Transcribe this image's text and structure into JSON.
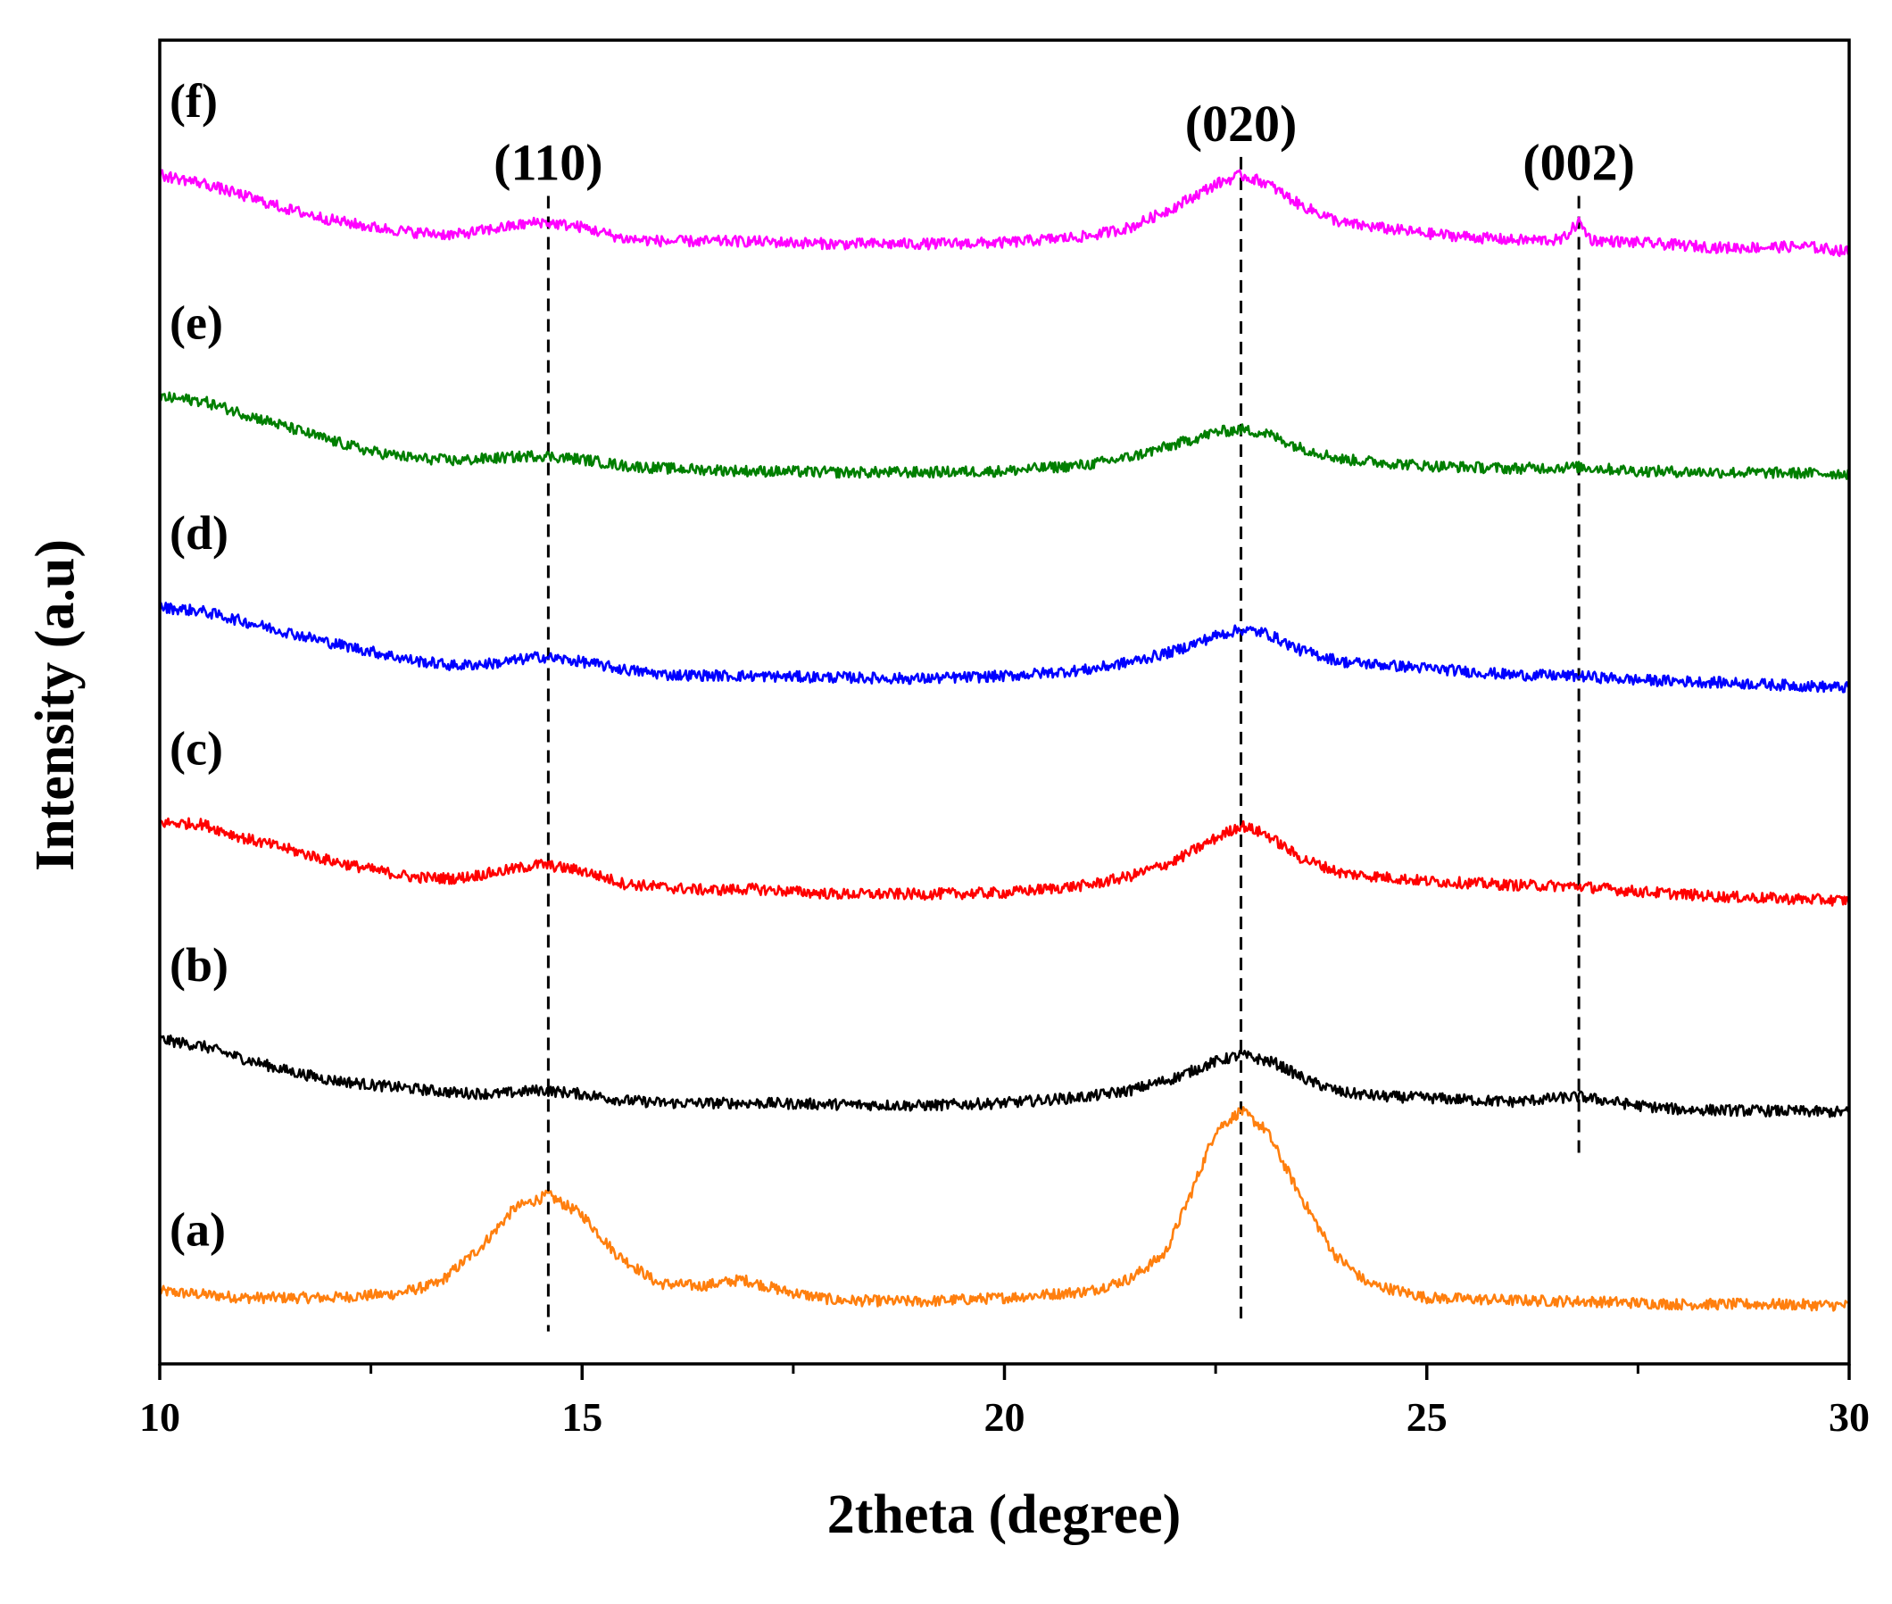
{
  "chart_data": {
    "type": "line",
    "title": "",
    "xlabel": "2theta (degree)",
    "ylabel": "Intensity (a.u)",
    "xlim": [
      10,
      30
    ],
    "ylim": [
      0,
      10.2
    ],
    "x_ticks": [
      10,
      15,
      20,
      25,
      30
    ],
    "x_tick_labels": [
      "10",
      "15",
      "20",
      "25",
      "30"
    ],
    "x_minor_ticks": [
      12.5,
      17.5,
      22.5,
      27.5
    ],
    "grid": false,
    "legend": "none",
    "annotations": [
      {
        "label": "(110)",
        "x": 14.6,
        "y_top": 9.0,
        "y_bottom": 0.25
      },
      {
        "label": "(020)",
        "x": 22.8,
        "y_top": 9.3,
        "y_bottom": 0.35
      },
      {
        "label": "(002)",
        "x": 26.8,
        "y_top": 9.0,
        "y_bottom": 1.6
      }
    ],
    "series": [
      {
        "name": "(a)",
        "color": "#ff7f0e",
        "points": [
          [
            10,
            0.56
          ],
          [
            11,
            0.51
          ],
          [
            12,
            0.51
          ],
          [
            12.8,
            0.54
          ],
          [
            13.3,
            0.62
          ],
          [
            13.8,
            0.9
          ],
          [
            14.2,
            1.2
          ],
          [
            14.6,
            1.3
          ],
          [
            15.0,
            1.15
          ],
          [
            15.4,
            0.85
          ],
          [
            15.9,
            0.62
          ],
          [
            16.4,
            0.6
          ],
          [
            16.9,
            0.65
          ],
          [
            17.4,
            0.56
          ],
          [
            18,
            0.49
          ],
          [
            19,
            0.48
          ],
          [
            20,
            0.51
          ],
          [
            21,
            0.56
          ],
          [
            21.5,
            0.66
          ],
          [
            21.9,
            0.85
          ],
          [
            22.2,
            1.3
          ],
          [
            22.5,
            1.8
          ],
          [
            22.8,
            1.95
          ],
          [
            23.1,
            1.8
          ],
          [
            23.5,
            1.3
          ],
          [
            23.9,
            0.85
          ],
          [
            24.3,
            0.62
          ],
          [
            25,
            0.51
          ],
          [
            26,
            0.49
          ],
          [
            27,
            0.48
          ],
          [
            28,
            0.46
          ],
          [
            29,
            0.46
          ],
          [
            30,
            0.45
          ]
        ]
      },
      {
        "name": "(b)",
        "color": "#000000",
        "points": [
          [
            10,
            2.5
          ],
          [
            10.5,
            2.45
          ],
          [
            11,
            2.35
          ],
          [
            11.5,
            2.26
          ],
          [
            12,
            2.19
          ],
          [
            12.5,
            2.15
          ],
          [
            13,
            2.12
          ],
          [
            13.5,
            2.09
          ],
          [
            14,
            2.08
          ],
          [
            14.5,
            2.11
          ],
          [
            15,
            2.08
          ],
          [
            15.5,
            2.03
          ],
          [
            16,
            2.01
          ],
          [
            17,
            2.01
          ],
          [
            18,
            2.0
          ],
          [
            19,
            1.99
          ],
          [
            20,
            2.01
          ],
          [
            21,
            2.06
          ],
          [
            21.5,
            2.11
          ],
          [
            22,
            2.2
          ],
          [
            22.5,
            2.33
          ],
          [
            22.8,
            2.38
          ],
          [
            23.2,
            2.32
          ],
          [
            23.6,
            2.18
          ],
          [
            24,
            2.09
          ],
          [
            24.5,
            2.06
          ],
          [
            25,
            2.05
          ],
          [
            26,
            2.02
          ],
          [
            26.8,
            2.06
          ],
          [
            27.5,
            1.99
          ],
          [
            28,
            1.96
          ],
          [
            29,
            1.95
          ],
          [
            30,
            1.94
          ]
        ]
      },
      {
        "name": "(c)",
        "color": "#ff0000",
        "points": [
          [
            10,
            4.17
          ],
          [
            10.5,
            4.16
          ],
          [
            11,
            4.05
          ],
          [
            11.5,
            3.97
          ],
          [
            12,
            3.88
          ],
          [
            12.5,
            3.81
          ],
          [
            13,
            3.75
          ],
          [
            13.5,
            3.74
          ],
          [
            14,
            3.79
          ],
          [
            14.5,
            3.85
          ],
          [
            15,
            3.8
          ],
          [
            15.5,
            3.7
          ],
          [
            16,
            3.67
          ],
          [
            16.5,
            3.65
          ],
          [
            17,
            3.66
          ],
          [
            18,
            3.62
          ],
          [
            19,
            3.62
          ],
          [
            20,
            3.63
          ],
          [
            21,
            3.69
          ],
          [
            21.5,
            3.76
          ],
          [
            22,
            3.87
          ],
          [
            22.5,
            4.05
          ],
          [
            22.8,
            4.15
          ],
          [
            23.1,
            4.08
          ],
          [
            23.5,
            3.9
          ],
          [
            24,
            3.78
          ],
          [
            25,
            3.72
          ],
          [
            26,
            3.69
          ],
          [
            26.8,
            3.68
          ],
          [
            27.5,
            3.64
          ],
          [
            28.5,
            3.6
          ],
          [
            30,
            3.57
          ]
        ]
      },
      {
        "name": "(d)",
        "color": "#0000ff",
        "points": [
          [
            10,
            5.83
          ],
          [
            10.5,
            5.8
          ],
          [
            11,
            5.72
          ],
          [
            11.5,
            5.64
          ],
          [
            12,
            5.56
          ],
          [
            12.5,
            5.49
          ],
          [
            13,
            5.42
          ],
          [
            13.5,
            5.38
          ],
          [
            14,
            5.4
          ],
          [
            14.5,
            5.45
          ],
          [
            15,
            5.41
          ],
          [
            15.5,
            5.35
          ],
          [
            16,
            5.31
          ],
          [
            17,
            5.3
          ],
          [
            18,
            5.29
          ],
          [
            19,
            5.28
          ],
          [
            20,
            5.3
          ],
          [
            21,
            5.35
          ],
          [
            21.5,
            5.41
          ],
          [
            22,
            5.49
          ],
          [
            22.5,
            5.61
          ],
          [
            22.8,
            5.66
          ],
          [
            23.1,
            5.63
          ],
          [
            23.5,
            5.5
          ],
          [
            24,
            5.41
          ],
          [
            25,
            5.36
          ],
          [
            26,
            5.31
          ],
          [
            26.8,
            5.3
          ],
          [
            27.5,
            5.27
          ],
          [
            28.5,
            5.25
          ],
          [
            30,
            5.21
          ]
        ]
      },
      {
        "name": "(e)",
        "color": "#007f00",
        "points": [
          [
            10,
            7.45
          ],
          [
            10.5,
            7.42
          ],
          [
            11,
            7.32
          ],
          [
            11.5,
            7.22
          ],
          [
            12,
            7.12
          ],
          [
            12.5,
            7.03
          ],
          [
            13,
            6.98
          ],
          [
            13.5,
            6.96
          ],
          [
            14,
            6.98
          ],
          [
            14.5,
            7.0
          ],
          [
            15,
            6.97
          ],
          [
            15.5,
            6.92
          ],
          [
            16,
            6.9
          ],
          [
            17,
            6.88
          ],
          [
            18,
            6.87
          ],
          [
            19,
            6.87
          ],
          [
            20,
            6.88
          ],
          [
            21,
            6.93
          ],
          [
            21.5,
            6.99
          ],
          [
            22,
            7.08
          ],
          [
            22.5,
            7.18
          ],
          [
            22.8,
            7.2
          ],
          [
            23.1,
            7.17
          ],
          [
            23.5,
            7.06
          ],
          [
            24,
            6.97
          ],
          [
            25,
            6.92
          ],
          [
            26,
            6.9
          ],
          [
            26.8,
            6.91
          ],
          [
            27.5,
            6.88
          ],
          [
            28.5,
            6.87
          ],
          [
            30,
            6.86
          ]
        ]
      },
      {
        "name": "(f)",
        "color": "#ff00ff",
        "points": [
          [
            10,
            9.16
          ],
          [
            10.5,
            9.1
          ],
          [
            11,
            9.0
          ],
          [
            11.5,
            8.9
          ],
          [
            12,
            8.82
          ],
          [
            12.5,
            8.76
          ],
          [
            13,
            8.72
          ],
          [
            13.5,
            8.7
          ],
          [
            14,
            8.75
          ],
          [
            14.5,
            8.8
          ],
          [
            15,
            8.76
          ],
          [
            15.5,
            8.67
          ],
          [
            16,
            8.65
          ],
          [
            17,
            8.65
          ],
          [
            18,
            8.63
          ],
          [
            19,
            8.63
          ],
          [
            20,
            8.64
          ],
          [
            21,
            8.69
          ],
          [
            21.5,
            8.76
          ],
          [
            22,
            8.91
          ],
          [
            22.5,
            9.09
          ],
          [
            22.8,
            9.16
          ],
          [
            23.1,
            9.1
          ],
          [
            23.5,
            8.93
          ],
          [
            24,
            8.79
          ],
          [
            25,
            8.71
          ],
          [
            26,
            8.66
          ],
          [
            26.6,
            8.66
          ],
          [
            26.8,
            8.8
          ],
          [
            26.95,
            8.66
          ],
          [
            27.5,
            8.64
          ],
          [
            28.5,
            8.6
          ],
          [
            29.5,
            8.61
          ],
          [
            30,
            8.57
          ]
        ]
      }
    ]
  }
}
